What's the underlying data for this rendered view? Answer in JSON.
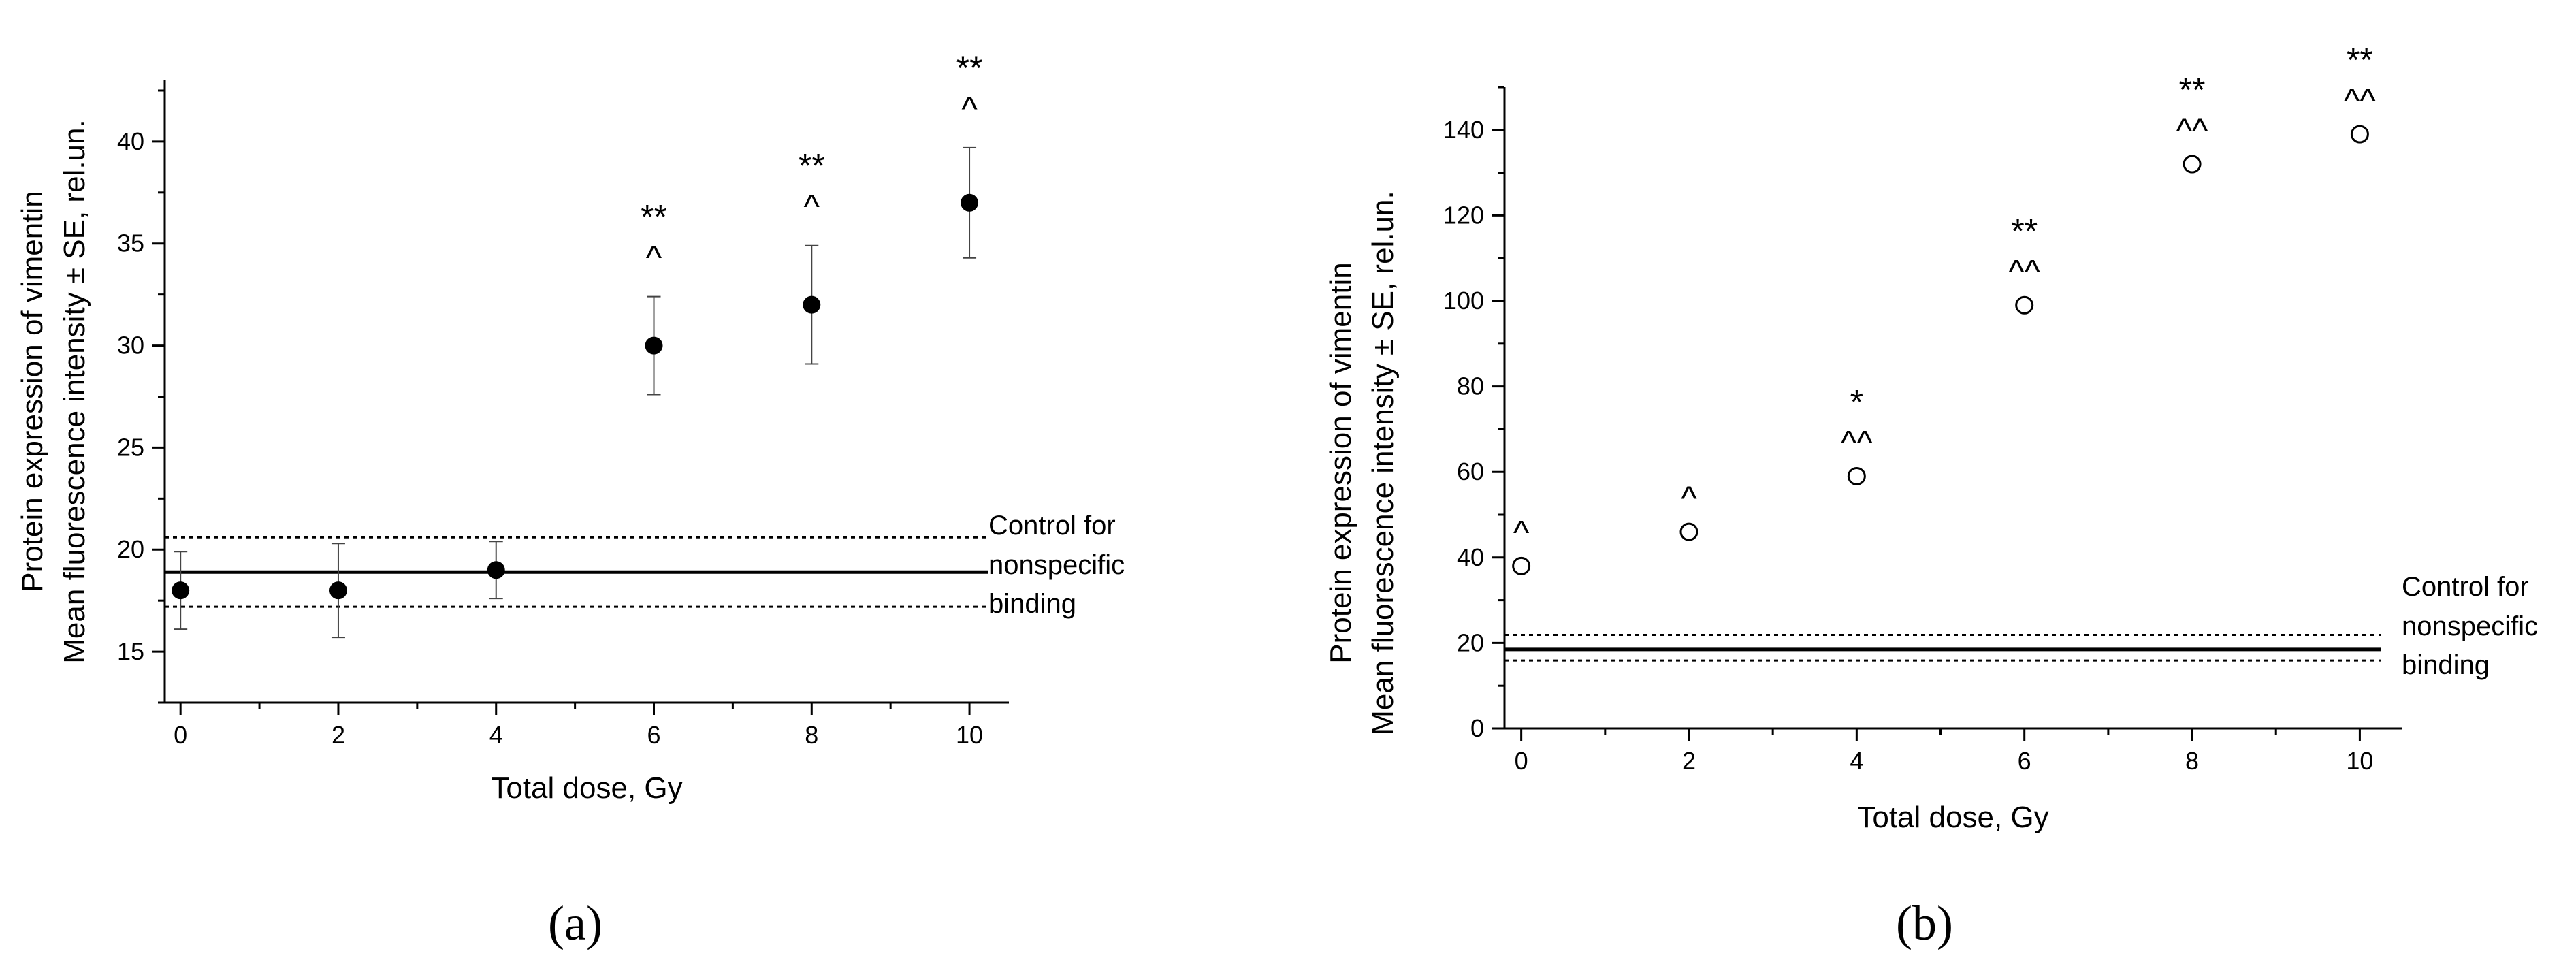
{
  "chart_data": [
    {
      "type": "scatter",
      "panel_label": "(a)",
      "xlabel": "Total dose, Gy",
      "ylabel": [
        "Protein expression of vimentin",
        "Mean  fluorescence intensity ± SE, rel.un."
      ],
      "xlim": [
        -0.2,
        10.5
      ],
      "ylim": [
        12.5,
        43
      ],
      "x_ticks": [
        0,
        2,
        4,
        6,
        8,
        10
      ],
      "y_ticks": [
        15,
        20,
        25,
        30,
        35,
        40
      ],
      "marker": "filled-circle",
      "points": [
        {
          "x": 0,
          "y": 18,
          "err": 1.9,
          "annotation": []
        },
        {
          "x": 2,
          "y": 18,
          "err": 2.3,
          "annotation": []
        },
        {
          "x": 4,
          "y": 19,
          "err": 1.4,
          "annotation": []
        },
        {
          "x": 6,
          "y": 30,
          "err": 2.4,
          "annotation": [
            "**",
            "^"
          ]
        },
        {
          "x": 8,
          "y": 32,
          "err": 2.9,
          "annotation": [
            "**",
            "^"
          ]
        },
        {
          "x": 10,
          "y": 37,
          "err": 2.7,
          "annotation": [
            "**",
            "^"
          ]
        }
      ],
      "control": {
        "label": [
          "Control for",
          "nonspecific",
          "binding"
        ],
        "mean": 18.9,
        "upper": 20.6,
        "lower": 17.2
      }
    },
    {
      "type": "scatter",
      "panel_label": "(b)",
      "xlabel": "Total dose, Gy",
      "ylabel": [
        "Protein expression of vimentin",
        "Mean  fluorescence intensity ± SE, rel.un."
      ],
      "xlim": [
        -0.2,
        10.5
      ],
      "ylim": [
        0,
        150
      ],
      "x_ticks": [
        0,
        2,
        4,
        6,
        8,
        10
      ],
      "y_ticks": [
        0,
        20,
        40,
        60,
        80,
        100,
        120,
        140
      ],
      "marker": "open-circle",
      "points": [
        {
          "x": 0,
          "y": 38,
          "annotation": [
            "^"
          ]
        },
        {
          "x": 2,
          "y": 46,
          "annotation": [
            "^"
          ]
        },
        {
          "x": 4,
          "y": 59,
          "annotation": [
            "*",
            "^^"
          ]
        },
        {
          "x": 6,
          "y": 99,
          "annotation": [
            "**",
            "^^"
          ]
        },
        {
          "x": 8,
          "y": 132,
          "annotation": [
            "**",
            "^^"
          ]
        },
        {
          "x": 10,
          "y": 139,
          "annotation": [
            "**",
            "^^"
          ]
        }
      ],
      "control": {
        "label": [
          "Control for",
          "nonspecific",
          "binding"
        ],
        "mean": 18.5,
        "upper": 21.9,
        "lower": 15.9
      }
    }
  ]
}
